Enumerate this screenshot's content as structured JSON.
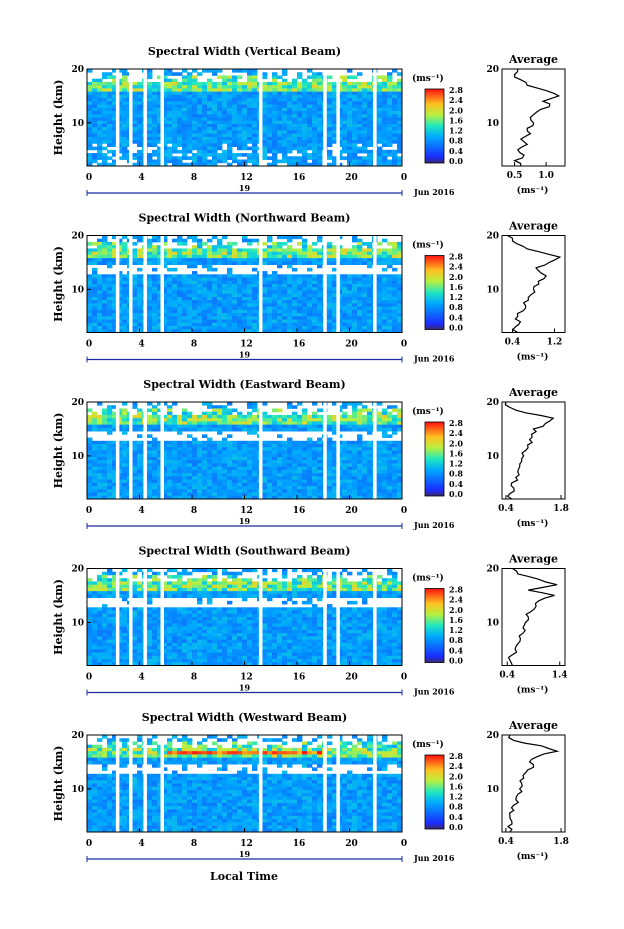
{
  "figure": {
    "xlabel": "Local Time",
    "ylabel": "Height (km)",
    "date_label": "Jun 2016",
    "day_label": "19",
    "colorbar_unit": "(ms⁻¹)",
    "colorbar_ticks": [
      "0.0",
      "0.4",
      "0.8",
      "1.2",
      "1.6",
      "2.0",
      "2.4",
      "2.8"
    ],
    "x_ticks": [
      "0",
      "4",
      "8",
      "12",
      "16",
      "20",
      "0"
    ],
    "y_ticks": [
      "20",
      "10"
    ],
    "avg_title": "Average",
    "avg_xlabel": "(ms⁻¹)",
    "colors": {
      "low": "#1a3cff",
      "mid": "#28c8ff",
      "high": "#ff3010",
      "curve": "#000000"
    }
  },
  "chart_data": [
    {
      "type": "heatmap",
      "title": "Spectral Width (Vertical Beam)",
      "x_range_hours": [
        0,
        24
      ],
      "y_range_km": [
        2,
        20
      ],
      "color_range": [
        0.0,
        2.8
      ],
      "avg_ticks": [
        "0.5",
        "1.0"
      ],
      "avg_xlim": [
        0.3,
        1.3
      ],
      "avg_profile": {
        "height_km": [
          2,
          3,
          4,
          5,
          6,
          7,
          8,
          9,
          10,
          11,
          12,
          13,
          14,
          15,
          16,
          17,
          18,
          19,
          20
        ],
        "value": [
          0.6,
          0.5,
          0.65,
          0.55,
          0.7,
          0.6,
          0.75,
          0.7,
          0.8,
          0.75,
          0.85,
          1.05,
          0.95,
          1.2,
          1.0,
          0.7,
          0.6,
          0.5,
          0.55
        ]
      }
    },
    {
      "type": "heatmap",
      "title": "Spectral Width (Northward Beam)",
      "x_range_hours": [
        0,
        24
      ],
      "y_range_km": [
        2,
        20
      ],
      "color_range": [
        0.0,
        2.8
      ],
      "avg_ticks": [
        "0.4",
        "1.2"
      ],
      "avg_xlim": [
        0.2,
        1.4
      ],
      "avg_profile": {
        "height_km": [
          2,
          3,
          4,
          5,
          6,
          7,
          8,
          9,
          10,
          11,
          12,
          13,
          14,
          15,
          16,
          17,
          18,
          19,
          20
        ],
        "value": [
          0.5,
          0.45,
          0.55,
          0.5,
          0.6,
          0.65,
          0.7,
          0.75,
          0.8,
          0.9,
          1.0,
          0.95,
          0.85,
          1.1,
          1.3,
          0.9,
          0.6,
          0.4,
          0.3
        ]
      }
    },
    {
      "type": "heatmap",
      "title": "Spectral Width (Eastward Beam)",
      "x_range_hours": [
        0,
        24
      ],
      "y_range_km": [
        2,
        20
      ],
      "color_range": [
        0.0,
        2.8
      ],
      "avg_ticks": [
        "0.4",
        "1.8"
      ],
      "avg_xlim": [
        0.3,
        1.9
      ],
      "avg_profile": {
        "height_km": [
          2,
          3,
          4,
          5,
          6,
          7,
          8,
          9,
          10,
          11,
          12,
          13,
          14,
          15,
          16,
          17,
          18,
          19,
          20
        ],
        "value": [
          0.55,
          0.5,
          0.6,
          0.55,
          0.65,
          0.7,
          0.75,
          0.8,
          0.85,
          0.9,
          0.95,
          1.0,
          1.05,
          1.1,
          1.4,
          1.6,
          0.9,
          0.5,
          0.4
        ]
      }
    },
    {
      "type": "heatmap",
      "title": "Spectral Width (Southward Beam)",
      "x_range_hours": [
        0,
        24
      ],
      "y_range_km": [
        2,
        20
      ],
      "color_range": [
        0.0,
        2.8
      ],
      "avg_ticks": [
        "0.4",
        "1.4"
      ],
      "avg_xlim": [
        0.3,
        1.5
      ],
      "avg_profile": {
        "height_km": [
          2,
          3,
          4,
          5,
          6,
          7,
          8,
          9,
          10,
          11,
          12,
          13,
          14,
          15,
          16,
          17,
          18,
          19,
          20
        ],
        "value": [
          0.5,
          0.45,
          0.5,
          0.55,
          0.6,
          0.65,
          0.7,
          0.7,
          0.75,
          0.8,
          0.85,
          0.95,
          1.0,
          1.3,
          0.8,
          1.35,
          1.0,
          0.6,
          0.5
        ]
      }
    },
    {
      "type": "heatmap",
      "title": "Spectral Width (Westward Beam)",
      "x_range_hours": [
        0,
        24
      ],
      "y_range_km": [
        2,
        20
      ],
      "color_range": [
        0.0,
        2.8
      ],
      "avg_ticks": [
        "0.4",
        "1.8"
      ],
      "avg_xlim": [
        0.3,
        1.9
      ],
      "avg_profile": {
        "height_km": [
          2,
          3,
          4,
          5,
          6,
          7,
          8,
          9,
          10,
          11,
          12,
          13,
          14,
          15,
          16,
          17,
          18,
          19,
          20
        ],
        "value": [
          0.5,
          0.45,
          0.55,
          0.5,
          0.6,
          0.6,
          0.65,
          0.7,
          0.75,
          0.8,
          0.85,
          0.9,
          1.1,
          1.0,
          1.2,
          1.7,
          1.3,
          0.6,
          0.5
        ]
      }
    }
  ]
}
